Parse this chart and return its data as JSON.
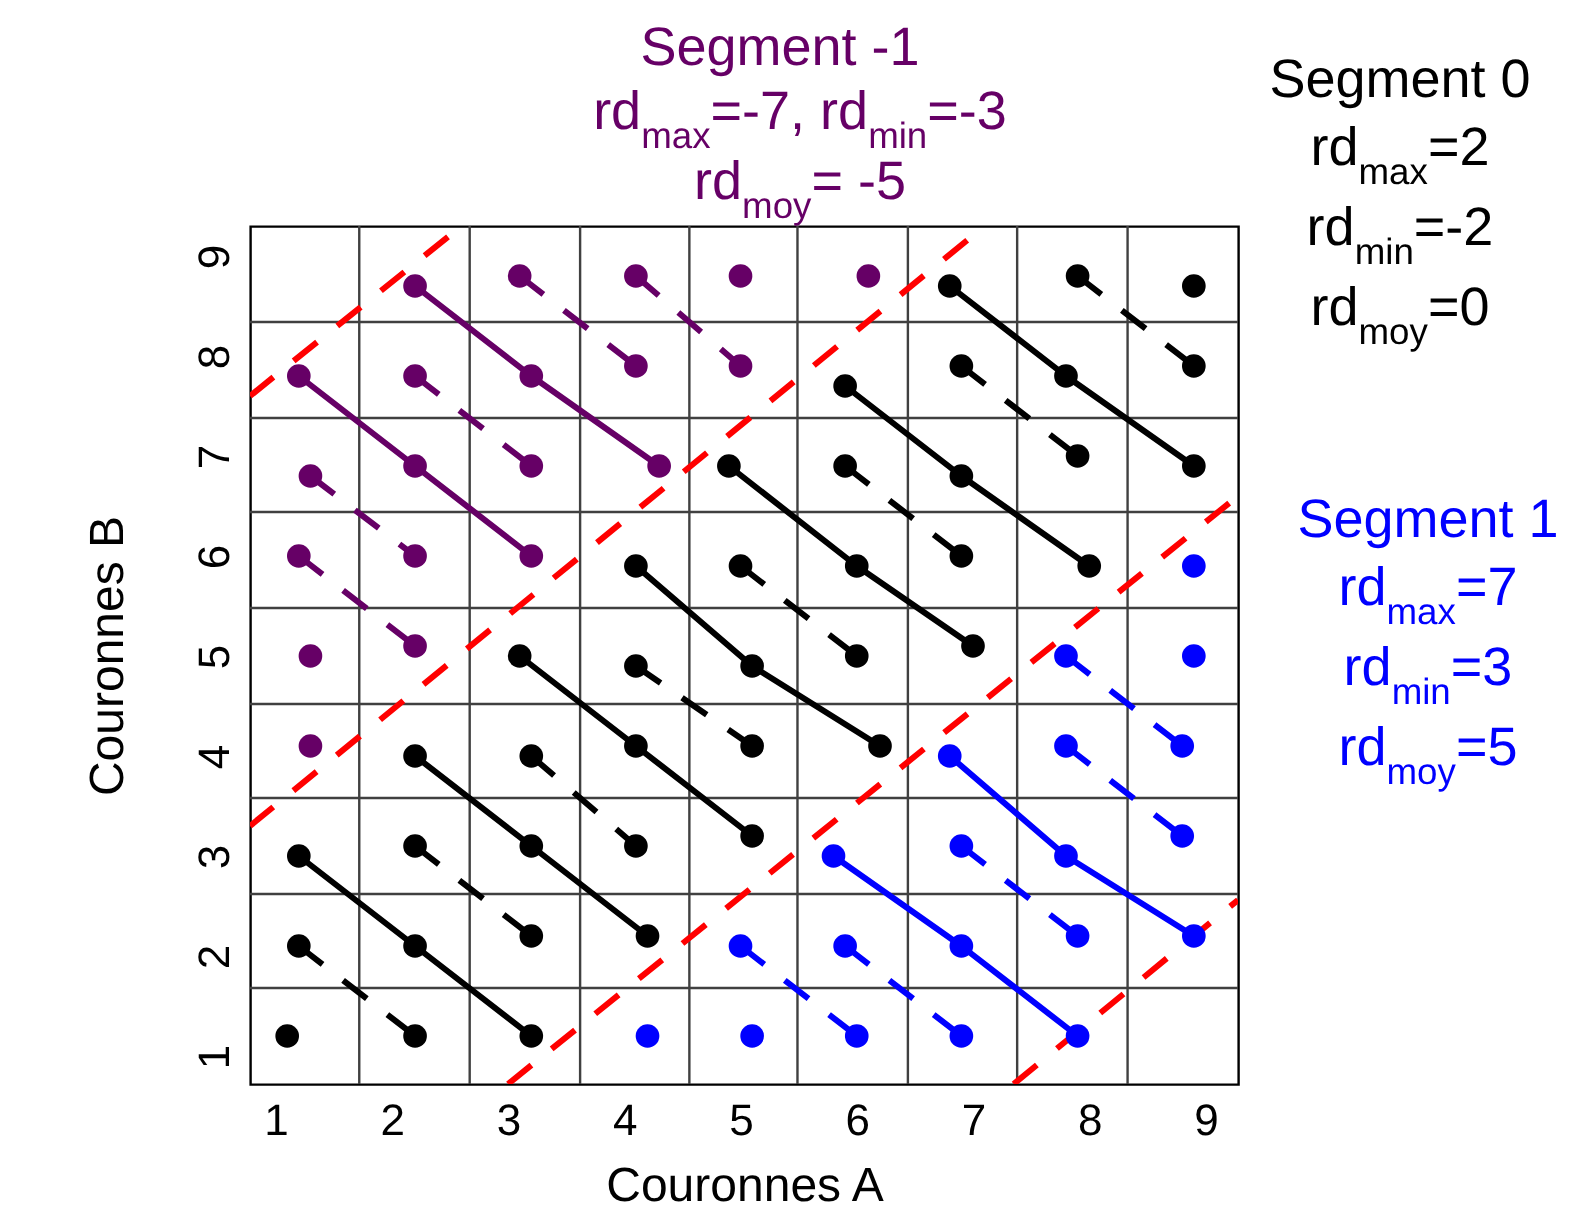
{
  "chart_data": {
    "type": "scatter",
    "xlabel": "Couronnes A",
    "ylabel": "Couronnes B",
    "xlim": [
      0.78,
      9.28
    ],
    "ylim": [
      0.72,
      9.3
    ],
    "xticks": [
      1,
      2,
      3,
      4,
      5,
      6,
      7,
      8,
      9
    ],
    "yticks": [
      1,
      2,
      3,
      4,
      5,
      6,
      7,
      8,
      9
    ],
    "annotations": [
      "rd$_{max}$=-7, rd$_{min}$=-3",
      "rd$_{moy}$= -5",
      "rd$_{max}$=2",
      "rd$_{min}$=-2",
      "rd$_{moy}$=0",
      "rd$_{max}$=7",
      "rd$_{min}$=3",
      "rd$_{moy}$=5"
    ],
    "ref_lines": [
      {
        "axis": "x",
        "value": 1.72,
        "color": "#404040"
      },
      {
        "axis": "x",
        "value": 2.67,
        "color": "#404040"
      },
      {
        "axis": "x",
        "value": 3.62,
        "color": "#404040"
      },
      {
        "axis": "x",
        "value": 4.56,
        "color": "#404040"
      },
      {
        "axis": "x",
        "value": 5.49,
        "color": "#404040"
      },
      {
        "axis": "x",
        "value": 6.44,
        "color": "#404040"
      },
      {
        "axis": "x",
        "value": 7.38,
        "color": "#404040"
      },
      {
        "axis": "x",
        "value": 8.33,
        "color": "#404040"
      },
      {
        "axis": "y",
        "value": 1.68,
        "color": "#404040"
      },
      {
        "axis": "y",
        "value": 2.62,
        "color": "#404040"
      },
      {
        "axis": "y",
        "value": 3.58,
        "color": "#404040"
      },
      {
        "axis": "y",
        "value": 4.52,
        "color": "#404040"
      },
      {
        "axis": "y",
        "value": 5.48,
        "color": "#404040"
      },
      {
        "axis": "y",
        "value": 6.44,
        "color": "#404040"
      },
      {
        "axis": "y",
        "value": 7.38,
        "color": "#404040"
      },
      {
        "axis": "y",
        "value": 8.34,
        "color": "#404040"
      }
    ],
    "series": [
      {
        "type": "line",
        "line_style": "dashed",
        "color": "#ff0000",
        "x": [
          0.78,
          2.6
        ],
        "values": [
          7.6,
          9.3
        ]
      },
      {
        "type": "line",
        "line_style": "dashed",
        "color": "#ff0000",
        "x": [
          0.78,
          7.1
        ],
        "values": [
          3.3,
          9.3
        ]
      },
      {
        "type": "line",
        "line_style": "dashed",
        "color": "#ff0000",
        "x": [
          3.0,
          9.28
        ],
        "values": [
          0.72,
          6.6
        ]
      },
      {
        "type": "line",
        "line_style": "dashed",
        "color": "#ff0000",
        "x": [
          7.35,
          9.28
        ],
        "values": [
          0.72,
          2.56
        ]
      },
      {
        "type": "line",
        "line_style": "dashed",
        "color": "#000000",
        "x": [
          1.2,
          2.2
        ],
        "values": [
          2.1,
          1.2
        ]
      },
      {
        "type": "line",
        "line_style": "solid",
        "color": "#000000",
        "x": [
          1.2,
          2.2,
          3.2
        ],
        "values": [
          3.0,
          2.1,
          1.2
        ]
      },
      {
        "type": "line",
        "line_style": "dashed",
        "color": "#000000",
        "x": [
          2.2,
          3.2
        ],
        "values": [
          3.1,
          2.2
        ]
      },
      {
        "type": "line",
        "line_style": "solid",
        "color": "#000000",
        "x": [
          2.2,
          3.2,
          4.2
        ],
        "values": [
          4.0,
          3.1,
          2.2
        ]
      },
      {
        "type": "line",
        "line_style": "dashed",
        "color": "#000000",
        "x": [
          3.2,
          4.1
        ],
        "values": [
          4.0,
          3.1
        ]
      },
      {
        "type": "line",
        "line_style": "solid",
        "color": "#000000",
        "x": [
          3.1,
          4.1,
          5.1
        ],
        "values": [
          5.0,
          4.1,
          3.2
        ]
      },
      {
        "type": "line",
        "line_style": "dashed",
        "color": "#000000",
        "x": [
          4.1,
          5.1
        ],
        "values": [
          4.9,
          4.1
        ]
      },
      {
        "type": "line",
        "line_style": "solid",
        "color": "#000000",
        "x": [
          4.1,
          5.1,
          6.2
        ],
        "values": [
          5.9,
          4.9,
          4.1
        ]
      },
      {
        "type": "line",
        "line_style": "dashed",
        "color": "#000000",
        "x": [
          5.0,
          6.0
        ],
        "values": [
          5.9,
          5.0
        ]
      },
      {
        "type": "line",
        "line_style": "solid",
        "color": "#000000",
        "x": [
          4.9,
          6.0,
          7.0
        ],
        "values": [
          6.9,
          5.9,
          5.1
        ]
      },
      {
        "type": "line",
        "line_style": "dashed",
        "color": "#000000",
        "x": [
          5.9,
          6.9
        ],
        "values": [
          6.9,
          6.0
        ]
      },
      {
        "type": "line",
        "line_style": "solid",
        "color": "#000000",
        "x": [
          5.9,
          6.9,
          8.0
        ],
        "values": [
          7.7,
          6.8,
          5.9
        ]
      },
      {
        "type": "line",
        "line_style": "dashed",
        "color": "#000000",
        "x": [
          6.9,
          7.9
        ],
        "values": [
          7.9,
          7.0
        ]
      },
      {
        "type": "line",
        "line_style": "solid",
        "color": "#000000",
        "x": [
          6.8,
          7.8,
          8.9
        ],
        "values": [
          8.7,
          7.8,
          6.9
        ]
      },
      {
        "type": "line",
        "line_style": "dashed",
        "color": "#000000",
        "x": [
          7.9,
          8.9
        ],
        "values": [
          8.8,
          7.9
        ]
      },
      {
        "type": "line",
        "line_style": "dashed",
        "color": "#660066",
        "x": [
          1.2,
          2.2
        ],
        "values": [
          6.0,
          5.1
        ]
      },
      {
        "type": "line",
        "line_style": "dashed",
        "color": "#660066",
        "x": [
          1.3,
          2.2
        ],
        "values": [
          6.8,
          6.0
        ]
      },
      {
        "type": "line",
        "line_style": "solid",
        "color": "#660066",
        "x": [
          1.2,
          2.2,
          3.2
        ],
        "values": [
          7.8,
          6.9,
          6.0
        ]
      },
      {
        "type": "line",
        "line_style": "dashed",
        "color": "#660066",
        "x": [
          2.2,
          3.2
        ],
        "values": [
          7.8,
          6.9
        ]
      },
      {
        "type": "line",
        "line_style": "solid",
        "color": "#660066",
        "x": [
          2.2,
          3.2,
          4.3
        ],
        "values": [
          8.7,
          7.8,
          6.9
        ]
      },
      {
        "type": "line",
        "line_style": "dashed",
        "color": "#660066",
        "x": [
          3.1,
          4.1
        ],
        "values": [
          8.8,
          7.9
        ]
      },
      {
        "type": "line",
        "line_style": "dashed",
        "color": "#660066",
        "x": [
          4.1,
          5.0
        ],
        "values": [
          8.8,
          7.9
        ]
      },
      {
        "type": "line",
        "line_style": "dashed",
        "color": "#0000ff",
        "x": [
          5.0,
          6.0
        ],
        "values": [
          2.1,
          1.2
        ]
      },
      {
        "type": "line",
        "line_style": "dashed",
        "color": "#0000ff",
        "x": [
          5.9,
          6.9
        ],
        "values": [
          2.1,
          1.2
        ]
      },
      {
        "type": "line",
        "line_style": "solid",
        "color": "#0000ff",
        "x": [
          5.8,
          6.9,
          7.9
        ],
        "values": [
          3.0,
          2.1,
          1.2
        ]
      },
      {
        "type": "line",
        "line_style": "dashed",
        "color": "#0000ff",
        "x": [
          6.9,
          7.9
        ],
        "values": [
          3.1,
          2.2
        ]
      },
      {
        "type": "line",
        "line_style": "solid",
        "color": "#0000ff",
        "x": [
          6.8,
          7.8,
          8.9
        ],
        "values": [
          4.0,
          3.0,
          2.2
        ]
      },
      {
        "type": "line",
        "line_style": "dashed",
        "color": "#0000ff",
        "x": [
          7.8,
          8.8
        ],
        "values": [
          4.1,
          3.2
        ]
      },
      {
        "type": "line",
        "line_style": "dashed",
        "color": "#0000ff",
        "x": [
          7.8,
          8.8
        ],
        "values": [
          5.0,
          4.1
        ]
      },
      {
        "name": "Segment -1",
        "color": "#660066",
        "marker": "circle",
        "x": [
          1.3,
          1.3,
          2.2,
          1.2,
          2.2,
          3.2,
          1.3,
          2.2,
          3.2,
          4.3,
          1.2,
          2.2,
          3.2,
          4.1,
          5.0,
          2.2,
          3.1,
          4.1,
          5.0,
          6.1
        ],
        "values": [
          4.1,
          5.0,
          5.1,
          6.0,
          6.0,
          6.0,
          6.8,
          6.9,
          6.9,
          6.9,
          7.8,
          7.8,
          7.8,
          7.9,
          7.9,
          8.7,
          8.8,
          8.8,
          8.8,
          8.8
        ]
      },
      {
        "name": "Segment 0",
        "color": "#000000",
        "marker": "circle",
        "x": [
          1.1,
          2.2,
          3.2,
          1.2,
          2.2,
          3.2,
          4.2,
          1.2,
          2.2,
          3.2,
          4.1,
          5.1,
          2.2,
          3.2,
          4.1,
          5.1,
          6.2,
          3.1,
          4.1,
          5.1,
          6.0,
          7.0,
          4.1,
          5.0,
          6.0,
          6.9,
          8.0,
          4.9,
          5.9,
          6.9,
          7.9,
          8.9,
          5.9,
          6.9,
          7.8,
          8.9,
          6.8,
          7.9,
          8.9
        ],
        "values": [
          1.2,
          1.2,
          1.2,
          2.1,
          2.1,
          2.2,
          2.2,
          3.0,
          3.1,
          3.1,
          3.1,
          3.2,
          4.0,
          4.0,
          4.1,
          4.1,
          4.1,
          5.0,
          4.9,
          4.9,
          5.0,
          5.1,
          5.9,
          5.9,
          5.9,
          6.0,
          5.9,
          6.9,
          6.9,
          6.8,
          7.0,
          6.9,
          7.7,
          7.9,
          7.8,
          7.9,
          8.7,
          8.8,
          8.7
        ]
      },
      {
        "name": "Segment 1",
        "color": "#0000ff",
        "marker": "circle",
        "x": [
          4.2,
          5.1,
          6.0,
          6.9,
          7.9,
          5.0,
          5.9,
          6.9,
          7.9,
          8.9,
          5.8,
          6.9,
          7.8,
          8.8,
          6.8,
          7.8,
          8.8,
          7.8,
          8.9,
          8.9
        ],
        "values": [
          1.2,
          1.2,
          1.2,
          1.2,
          1.2,
          2.1,
          2.1,
          2.1,
          2.2,
          2.2,
          3.0,
          3.1,
          3.0,
          3.2,
          4.0,
          4.1,
          4.1,
          5.0,
          5.0,
          5.9
        ]
      }
    ]
  }
}
